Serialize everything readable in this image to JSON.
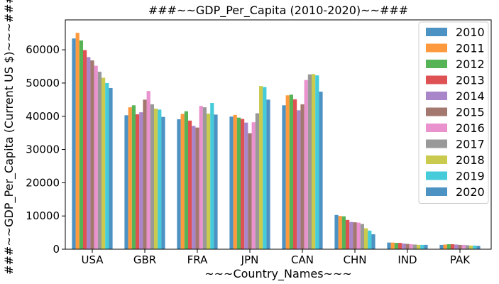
{
  "chart_data": {
    "type": "bar",
    "title": "###~~GDP_Per_Capita (2010-2020)~~###",
    "xlabel": "~~~Country_Names~~~",
    "ylabel": "###~~GDP_Per_Capita (Current US $)~~~###",
    "categories": [
      "USA",
      "GBR",
      "FRA",
      "JPN",
      "CAN",
      "CHN",
      "IND",
      "PAK"
    ],
    "ylim": [
      0,
      69000
    ],
    "yticks": [
      0,
      10000,
      20000,
      30000,
      40000,
      50000,
      60000
    ],
    "ytick_labels": [
      "0",
      "10000",
      "20000",
      "30000",
      "40000",
      "50000",
      "60000"
    ],
    "grid": false,
    "legend_position": "top-right",
    "series": [
      {
        "name": "2010",
        "color": "#1f77b4",
        "values": [
          63400,
          40300,
          39100,
          39900,
          43300,
          10300,
          2000,
          1300
        ]
      },
      {
        "name": "2011",
        "color": "#ff7f0e",
        "values": [
          65100,
          42700,
          40700,
          40400,
          46300,
          10000,
          2000,
          1400
        ]
      },
      {
        "name": "2012",
        "color": "#2ca02c",
        "values": [
          62800,
          43300,
          41500,
          39600,
          46500,
          9900,
          1900,
          1500
        ]
      },
      {
        "name": "2013",
        "color": "#d62728",
        "values": [
          59900,
          40600,
          38700,
          39200,
          45100,
          8800,
          1900,
          1500
        ]
      },
      {
        "name": "2014",
        "color": "#9467bd",
        "values": [
          57800,
          41200,
          37100,
          38100,
          41800,
          8200,
          1700,
          1400
        ]
      },
      {
        "name": "2015",
        "color": "#8c564b",
        "values": [
          56800,
          45000,
          36600,
          34900,
          43600,
          8100,
          1600,
          1300
        ]
      },
      {
        "name": "2016",
        "color": "#e377c2",
        "values": [
          55200,
          47600,
          43100,
          38200,
          50900,
          8000,
          1500,
          1300
        ]
      },
      {
        "name": "2017",
        "color": "#7f7f7f",
        "values": [
          53400,
          43600,
          42700,
          40900,
          52600,
          7600,
          1400,
          1200
        ]
      },
      {
        "name": "2018",
        "color": "#bcbd22",
        "values": [
          51600,
          42300,
          40800,
          49100,
          52700,
          6300,
          1300,
          1100
        ]
      },
      {
        "name": "2019",
        "color": "#17becf",
        "values": [
          50000,
          42000,
          44000,
          48800,
          52300,
          5600,
          1300,
          1100
        ]
      },
      {
        "name": "2020",
        "color": "#1f77b4",
        "values": [
          48500,
          39800,
          40500,
          45000,
          47400,
          4500,
          1300,
          1000
        ]
      }
    ]
  }
}
